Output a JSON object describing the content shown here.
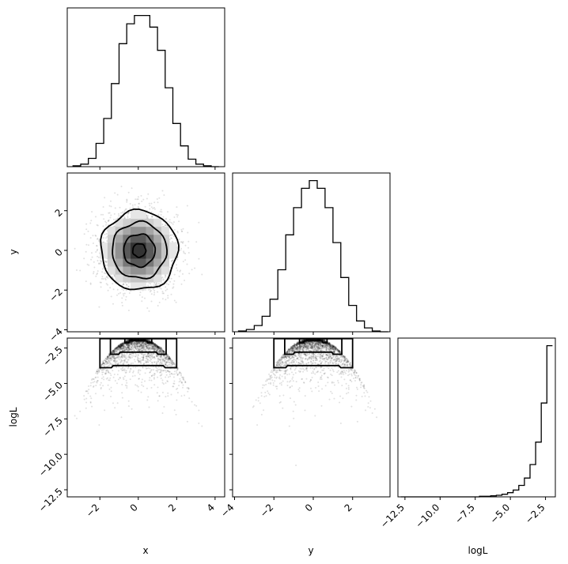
{
  "chart_data": {
    "type": "corner",
    "parameters": [
      "x",
      "y",
      "logL"
    ],
    "labels": {
      "x": "x",
      "y": "y",
      "logL": "logL"
    },
    "ranges": {
      "x": [
        -3.7,
        4.5
      ],
      "y": [
        -4.1,
        3.9
      ],
      "logL": [
        -13.0,
        -1.8
      ]
    },
    "ticks": {
      "x": [
        -2,
        0,
        2,
        4
      ],
      "y": [
        -4,
        -2,
        0,
        2
      ],
      "logL": [
        -12.5,
        -10.0,
        -7.5,
        -5.0,
        -2.5
      ]
    },
    "tick_labels": {
      "x": [
        "−2",
        "0",
        "2",
        "4"
      ],
      "y": [
        "−4",
        "−2",
        "0",
        "2"
      ],
      "logL": [
        "−12.5",
        "−10.0",
        "−7.5",
        "−5.0",
        "−2.5"
      ]
    },
    "histograms": {
      "x": {
        "edges": [
          -3.4,
          -3.0,
          -2.6,
          -2.2,
          -1.8,
          -1.4,
          -1.0,
          -0.6,
          -0.2,
          0.2,
          0.6,
          1.0,
          1.4,
          1.8,
          2.2,
          2.6,
          3.0,
          3.4,
          3.8,
          4.2
        ],
        "counts": [
          1,
          3,
          10,
          28,
          58,
          100,
          148,
          172,
          182,
          182,
          168,
          140,
          95,
          52,
          25,
          9,
          3,
          1,
          0
        ]
      },
      "y": {
        "edges": [
          -3.8,
          -3.4,
          -3.0,
          -2.6,
          -2.2,
          -1.8,
          -1.4,
          -1.0,
          -0.6,
          -0.2,
          0.2,
          0.6,
          1.0,
          1.4,
          1.8,
          2.2,
          2.6,
          3.0,
          3.4,
          3.8
        ],
        "counts": [
          1,
          3,
          8,
          20,
          42,
          80,
          125,
          160,
          185,
          195,
          185,
          160,
          115,
          70,
          34,
          14,
          5,
          1,
          0
        ]
      },
      "logL": {
        "edges": [
          -12.8,
          -12.4,
          -12.0,
          -11.6,
          -11.2,
          -10.8,
          -10.4,
          -10.0,
          -9.6,
          -9.2,
          -8.8,
          -8.4,
          -8.0,
          -7.6,
          -7.2,
          -6.8,
          -6.4,
          -6.0,
          -5.6,
          -5.2,
          -4.8,
          -4.4,
          -4.0,
          -3.6,
          -3.2,
          -2.8,
          -2.4,
          -2.0
        ],
        "counts": [
          0,
          0,
          0,
          0,
          0,
          0,
          0,
          0,
          0,
          0,
          0,
          0,
          0,
          0,
          1,
          1,
          2,
          3,
          5,
          8,
          13,
          22,
          36,
          62,
          105,
          180,
          290
        ]
      }
    },
    "contour_levels": [
      "0.118",
      "0.393",
      "0.675",
      "0.864"
    ],
    "grid": false
  }
}
